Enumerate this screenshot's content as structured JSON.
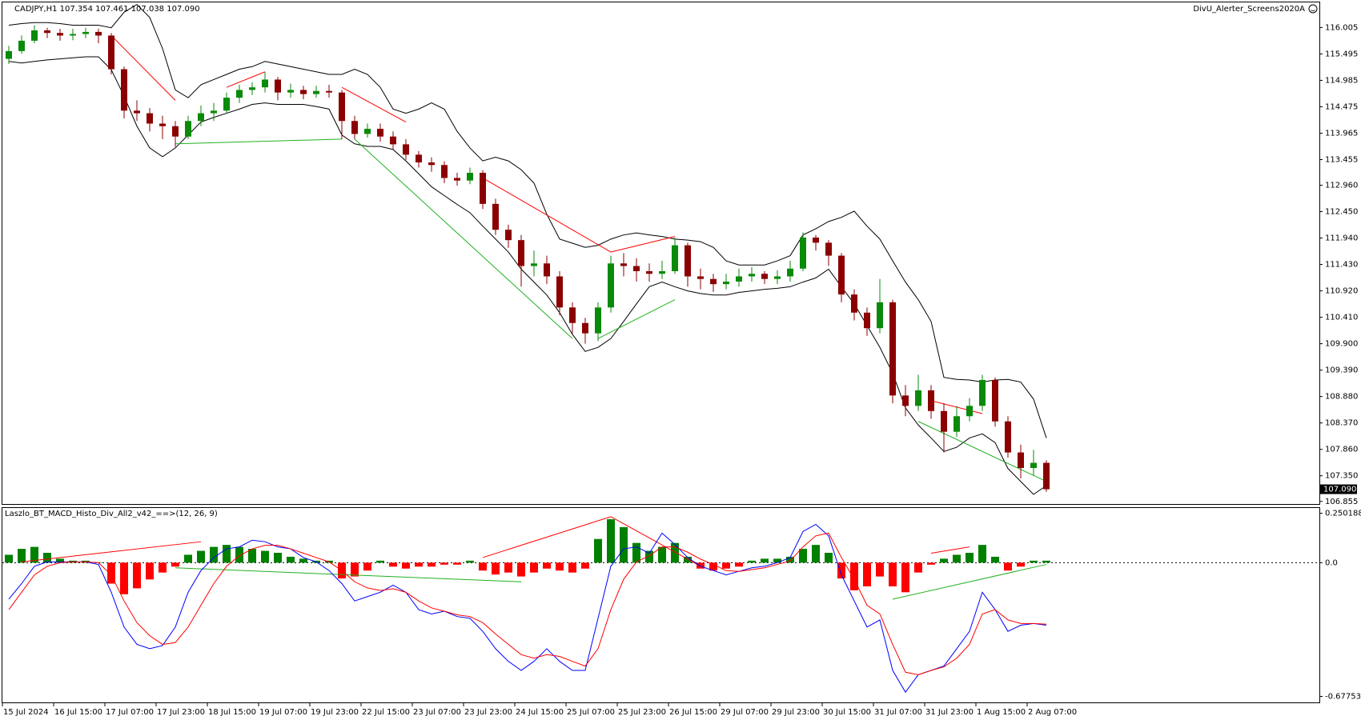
{
  "chart_data": [
    {
      "type": "candlestick",
      "title": "CADJPY,H1  107.354 107.461 107.038 107.090",
      "subtitle": "DivU_Alerter_Screens2020A",
      "categories": [
        "15 Jul 2024",
        null,
        null,
        null,
        "16 Jul 15:00",
        null,
        null,
        null,
        "17 Jul 07:00",
        null,
        null,
        null,
        "17 Jul 23:00",
        null,
        null,
        null,
        "18 Jul 15:00",
        null,
        null,
        null,
        "19 Jul 07:00",
        null,
        null,
        null,
        "19 Jul 23:00",
        null,
        null,
        null,
        "22 Jul 15:00",
        null,
        null,
        null,
        "23 Jul 07:00",
        null,
        null,
        null,
        "23 Jul 23:00",
        null,
        null,
        null,
        "24 Jul 15:00",
        null,
        null,
        null,
        "25 Jul 07:00",
        null,
        null,
        null,
        "25 Jul 23:00",
        null,
        null,
        null,
        "26 Jul 15:00",
        null,
        null,
        null,
        "29 Jul 07:00",
        null,
        null,
        null,
        "29 Jul 23:00",
        null,
        null,
        null,
        "30 Jul 15:00",
        null,
        null,
        null,
        "31 Jul 07:00",
        null,
        null,
        null,
        "31 Jul 23:00",
        null,
        null,
        null,
        "1 Aug 15:00",
        null,
        null,
        null,
        "2 Aug 07:00",
        null
      ],
      "open": [
        115.4,
        115.55,
        115.75,
        115.95,
        115.9,
        115.85,
        115.88,
        115.92,
        115.85,
        115.2,
        114.4,
        114.35,
        114.15,
        114.1,
        113.9,
        114.2,
        114.35,
        114.4,
        114.65,
        114.8,
        114.85,
        115.0,
        114.75,
        114.8,
        114.72,
        114.78,
        114.75,
        114.2,
        113.95,
        114.05,
        113.9,
        113.75,
        113.55,
        113.4,
        113.35,
        113.1,
        113.05,
        113.2,
        112.6,
        112.1,
        111.9,
        111.4,
        111.45,
        111.2,
        110.6,
        110.3,
        110.1,
        110.6,
        111.45,
        111.4,
        111.3,
        111.25,
        111.3,
        111.8,
        111.2,
        111.15,
        111.05,
        111.1,
        111.2,
        111.25,
        111.15,
        111.2,
        111.35,
        111.95,
        111.85,
        111.6,
        110.85,
        110.5,
        110.2,
        110.7,
        108.9,
        108.7,
        109.0,
        108.6,
        108.2,
        108.5,
        108.7,
        109.2,
        108.4,
        107.8,
        107.5,
        107.6
      ],
      "high": [
        115.65,
        115.85,
        116.05,
        116.0,
        115.98,
        115.98,
        116.0,
        115.98,
        115.9,
        115.25,
        114.6,
        114.45,
        114.3,
        114.2,
        114.3,
        114.5,
        114.55,
        114.75,
        114.9,
        114.95,
        115.15,
        115.05,
        114.92,
        114.88,
        114.88,
        114.9,
        114.8,
        114.3,
        114.15,
        114.15,
        114.0,
        113.85,
        113.62,
        113.5,
        113.42,
        113.2,
        113.3,
        113.25,
        112.7,
        112.2,
        112.0,
        111.7,
        111.6,
        111.3,
        110.7,
        110.4,
        110.7,
        111.6,
        111.65,
        111.55,
        111.45,
        111.5,
        111.95,
        111.85,
        111.35,
        111.25,
        111.25,
        111.35,
        111.38,
        111.3,
        111.32,
        111.5,
        112.05,
        112.0,
        111.9,
        111.65,
        110.95,
        110.6,
        111.15,
        110.75,
        109.1,
        109.3,
        109.1,
        108.75,
        108.7,
        108.85,
        109.3,
        109.25,
        108.5,
        107.95,
        107.85,
        107.65
      ],
      "low": [
        115.3,
        115.5,
        115.7,
        115.8,
        115.75,
        115.76,
        115.8,
        115.7,
        115.1,
        114.25,
        114.2,
        114.0,
        113.85,
        113.7,
        113.85,
        114.1,
        114.2,
        114.35,
        114.55,
        114.7,
        114.75,
        114.6,
        114.65,
        114.62,
        114.65,
        114.65,
        113.85,
        113.85,
        113.88,
        113.8,
        113.65,
        113.45,
        113.3,
        113.22,
        113.0,
        112.95,
        112.98,
        112.5,
        112.0,
        111.75,
        111.0,
        111.2,
        111.05,
        110.45,
        110.1,
        109.9,
        109.95,
        110.5,
        111.2,
        111.1,
        111.1,
        111.15,
        111.25,
        111.0,
        110.95,
        110.9,
        110.95,
        111.0,
        111.1,
        111.05,
        111.05,
        111.1,
        111.3,
        111.7,
        111.4,
        110.7,
        110.35,
        110.05,
        110.1,
        108.75,
        108.5,
        108.6,
        108.45,
        107.8,
        108.1,
        108.4,
        108.6,
        108.3,
        107.7,
        107.3,
        107.35,
        107.04
      ],
      "close": [
        115.55,
        115.75,
        115.95,
        115.9,
        115.85,
        115.88,
        115.92,
        115.85,
        115.2,
        114.4,
        114.35,
        114.15,
        114.1,
        113.9,
        114.2,
        114.35,
        114.4,
        114.65,
        114.8,
        114.85,
        115.0,
        114.75,
        114.8,
        114.72,
        114.78,
        114.75,
        114.2,
        113.95,
        114.05,
        113.9,
        113.75,
        113.55,
        113.4,
        113.35,
        113.1,
        113.05,
        113.2,
        112.6,
        112.1,
        111.9,
        111.4,
        111.45,
        111.2,
        110.6,
        110.3,
        110.1,
        110.6,
        111.45,
        111.4,
        111.3,
        111.25,
        111.3,
        111.8,
        111.2,
        111.15,
        111.05,
        111.1,
        111.2,
        111.25,
        111.15,
        111.2,
        111.35,
        111.95,
        111.85,
        111.6,
        110.85,
        110.5,
        110.2,
        110.7,
        108.9,
        108.7,
        109.0,
        108.6,
        108.2,
        108.5,
        108.7,
        109.2,
        108.4,
        107.8,
        107.5,
        107.6,
        107.09
      ],
      "up_color": "#0a8a0a",
      "down_color": "#8b0000",
      "bands": [
        {
          "color": "#000000",
          "values": [
            116.05,
            116.08,
            116.1,
            116.1,
            116.08,
            116.05,
            116.05,
            116.05,
            116.0,
            116.3,
            116.45,
            116.2,
            115.6,
            114.8,
            114.65,
            114.9,
            115.0,
            115.1,
            115.2,
            115.25,
            115.35,
            115.3,
            115.25,
            115.2,
            115.15,
            115.1,
            115.1,
            115.2,
            115.1,
            114.85,
            114.43,
            114.35,
            114.43,
            114.55,
            114.43,
            114.0,
            113.68,
            113.43,
            113.5,
            113.43,
            113.26,
            113.0,
            112.4,
            111.92,
            111.84,
            111.76,
            111.8,
            111.92,
            112.0,
            112.04,
            112.0,
            111.97,
            111.92,
            111.9,
            111.87,
            111.76,
            111.5,
            111.42,
            111.42,
            111.42,
            111.5,
            111.6,
            112.0,
            112.12,
            112.26,
            112.34,
            112.46,
            112.17,
            111.92,
            111.5,
            111.09,
            110.75,
            110.33,
            109.25,
            109.21,
            109.2,
            109.16,
            109.2,
            109.21,
            109.16,
            108.83,
            108.08
          ]
        },
        {
          "color": "#000000",
          "values": [
            115.35,
            115.32,
            115.35,
            115.38,
            115.4,
            115.42,
            115.44,
            115.44,
            115.19,
            114.68,
            114.1,
            113.68,
            113.51,
            113.68,
            113.93,
            114.18,
            114.27,
            114.35,
            114.43,
            114.52,
            114.55,
            114.52,
            114.52,
            114.52,
            114.48,
            114.43,
            113.93,
            113.76,
            113.71,
            113.71,
            113.65,
            113.43,
            113.18,
            112.93,
            112.76,
            112.59,
            112.43,
            112.17,
            111.92,
            111.67,
            111.34,
            111.09,
            110.84,
            110.5,
            110.08,
            109.75,
            109.83,
            110.0,
            110.33,
            110.67,
            111.0,
            111.09,
            111.0,
            110.92,
            110.87,
            110.84,
            110.84,
            110.89,
            110.92,
            110.95,
            110.97,
            111.0,
            111.09,
            111.17,
            111.34,
            111.0,
            110.67,
            110.25,
            109.83,
            109.33,
            108.66,
            108.33,
            108.08,
            107.82,
            107.9,
            108.08,
            108.16,
            107.99,
            107.49,
            107.24,
            106.99,
            107.16
          ]
        }
      ],
      "trend_lines": [
        {
          "color": "#ff0000",
          "x": [
            8,
            13
          ],
          "y": [
            115.85,
            114.6
          ]
        },
        {
          "color": "#ff0000",
          "x": [
            17,
            20
          ],
          "y": [
            114.85,
            115.15
          ]
        },
        {
          "color": "#ff0000",
          "x": [
            26,
            31
          ],
          "y": [
            114.85,
            114.18
          ]
        },
        {
          "color": "#ff0000",
          "x": [
            37,
            47
          ],
          "y": [
            113.1,
            111.67
          ]
        },
        {
          "color": "#ff0000",
          "x": [
            47,
            52
          ],
          "y": [
            111.67,
            111.97
          ]
        },
        {
          "color": "#ff0000",
          "x": [
            72,
            76
          ],
          "y": [
            108.8,
            108.55
          ]
        },
        {
          "color": "#22b022",
          "x": [
            13,
            26
          ],
          "y": [
            113.76,
            113.85
          ]
        },
        {
          "color": "#22b022",
          "x": [
            27,
            44
          ],
          "y": [
            113.85,
            110.0
          ]
        },
        {
          "color": "#22b022",
          "x": [
            46,
            52
          ],
          "y": [
            110.0,
            110.75
          ]
        },
        {
          "color": "#22b022",
          "x": [
            71,
            81
          ],
          "y": [
            108.4,
            107.24
          ]
        }
      ],
      "ylim": [
        106.805,
        116.49
      ],
      "yticks": [
        116.005,
        115.495,
        114.985,
        114.475,
        113.965,
        113.455,
        {
          "value": 112.96,
          "label": "112.960"
        },
        {
          "value": 112.45,
          "label": "112.450"
        },
        {
          "value": 111.94,
          "label": "111.940"
        },
        {
          "value": 111.43,
          "label": "111.430"
        },
        {
          "value": 110.92,
          "label": "110.920"
        },
        {
          "value": 110.41,
          "label": "110.410"
        },
        {
          "value": 109.9,
          "label": "109.900"
        },
        {
          "value": 109.39,
          "label": "109.390"
        },
        {
          "value": 108.88,
          "label": "108.880"
        },
        {
          "value": 108.37,
          "label": "108.370"
        },
        {
          "value": 107.86,
          "label": "107.860"
        },
        {
          "value": 107.35,
          "label": "107.350"
        },
        106.855
      ],
      "current_price": {
        "value": 107.09,
        "label": "107.090"
      }
    },
    {
      "type": "macd",
      "title": "Laszlo_BT_MACD_Histo_Div_All2_v42_==>(12, 26, 9)",
      "histogram": {
        "up_color": "#008000",
        "down_color": "#ff0000",
        "values": [
          0.04,
          0.07,
          0.08,
          0.05,
          0.02,
          0.01,
          0.01,
          0,
          -0.106,
          -0.16,
          -0.13,
          -0.085,
          -0.05,
          -0.02,
          0.04,
          0.06,
          0.08,
          0.09,
          0.08,
          0.07,
          0.06,
          0.05,
          0.03,
          0.02,
          0.01,
          0.01,
          -0.08,
          -0.07,
          -0.04,
          0.01,
          -0.02,
          -0.03,
          -0.02,
          -0.02,
          -0.01,
          -0.01,
          0.01,
          -0.04,
          -0.06,
          -0.05,
          -0.07,
          -0.05,
          -0.03,
          -0.04,
          -0.05,
          -0.03,
          0.12,
          0.22,
          0.18,
          0.1,
          0.06,
          0.08,
          0.1,
          0.03,
          -0.03,
          -0.04,
          -0.03,
          -0.02,
          0.01,
          0.02,
          0.02,
          0.03,
          0.07,
          0.09,
          0.05,
          -0.08,
          -0.14,
          -0.12,
          -0.07,
          -0.12,
          -0.15,
          -0.05,
          -0.01,
          0.02,
          0.04,
          0.05,
          0.09,
          0.03,
          -0.04,
          -0.02,
          0.01,
          0.01
        ]
      },
      "series": [
        {
          "color": "#0000ff",
          "values": [
            -0.185,
            -0.106,
            -0.018,
            0.004,
            0.004,
            0.004,
            0.004,
            -0.009,
            -0.15,
            -0.326,
            -0.414,
            -0.436,
            -0.42,
            -0.326,
            -0.15,
            -0.04,
            0.026,
            0.07,
            0.08,
            0.114,
            0.106,
            0.08,
            0.07,
            0.026,
            0.004,
            -0.04,
            -0.106,
            -0.194,
            -0.172,
            -0.15,
            -0.114,
            -0.15,
            -0.238,
            -0.26,
            -0.246,
            -0.273,
            -0.282,
            -0.348,
            -0.436,
            -0.5,
            -0.546,
            -0.5,
            -0.436,
            -0.5,
            -0.546,
            -0.546,
            -0.282,
            -0.018,
            0.07,
            0.08,
            0.048,
            0.15,
            0.092,
            0.026,
            -0.018,
            -0.04,
            -0.062,
            -0.044,
            -0.026,
            -0.018,
            0,
            0.026,
            0.158,
            0.194,
            0.136,
            -0.062,
            -0.194,
            -0.326,
            -0.29,
            -0.546,
            -0.656,
            -0.568,
            -0.546,
            -0.524,
            -0.436,
            -0.348,
            -0.15,
            -0.238,
            -0.348,
            -0.317,
            -0.308,
            -0.317
          ]
        },
        {
          "color": "#ff0000",
          "values": [
            -0.238,
            -0.15,
            -0.062,
            -0.018,
            0,
            0.004,
            0.004,
            0,
            -0.062,
            -0.194,
            -0.304,
            -0.37,
            -0.414,
            -0.405,
            -0.326,
            -0.216,
            -0.106,
            -0.018,
            0.035,
            0.07,
            0.088,
            0.088,
            0.07,
            0.048,
            0.026,
            0.004,
            -0.04,
            -0.097,
            -0.128,
            -0.141,
            -0.132,
            -0.15,
            -0.194,
            -0.229,
            -0.246,
            -0.264,
            -0.273,
            -0.304,
            -0.361,
            -0.414,
            -0.466,
            -0.484,
            -0.466,
            -0.475,
            -0.5,
            -0.524,
            -0.436,
            -0.238,
            -0.084,
            0.004,
            0.035,
            0.08,
            0.08,
            0.053,
            0.018,
            -0.009,
            -0.04,
            -0.044,
            -0.035,
            -0.026,
            -0.009,
            0.009,
            0.08,
            0.136,
            0.15,
            0.026,
            -0.084,
            -0.216,
            -0.26,
            -0.414,
            -0.555,
            -0.568,
            -0.546,
            -0.528,
            -0.484,
            -0.414,
            -0.26,
            -0.238,
            -0.29,
            -0.308,
            -0.308,
            -0.312
          ]
        }
      ],
      "trend_lines": [
        {
          "color": "#ff0000",
          "x": [
            1,
            15
          ],
          "y": [
            0.004,
            0.106
          ]
        },
        {
          "color": "#22b022",
          "x": [
            13,
            40
          ],
          "y": [
            -0.026,
            -0.097
          ]
        },
        {
          "color": "#ff0000",
          "x": [
            37,
            47
          ],
          "y": [
            0.026,
            0.233
          ]
        },
        {
          "color": "#ff0000",
          "x": [
            47,
            54
          ],
          "y": [
            0.233,
            -0.018
          ]
        },
        {
          "color": "#22b022",
          "x": [
            69,
            81
          ],
          "y": [
            -0.185,
            -0.009
          ]
        },
        {
          "color": "#ff0000",
          "x": [
            72,
            75
          ],
          "y": [
            0.048,
            0.08
          ]
        }
      ],
      "ylim": [
        -0.708,
        0.277
      ],
      "yticks": [
        0.250188,
        {
          "value": 0,
          "label": "0.0"
        },
        -0.677532
      ],
      "zero_line": true
    }
  ]
}
